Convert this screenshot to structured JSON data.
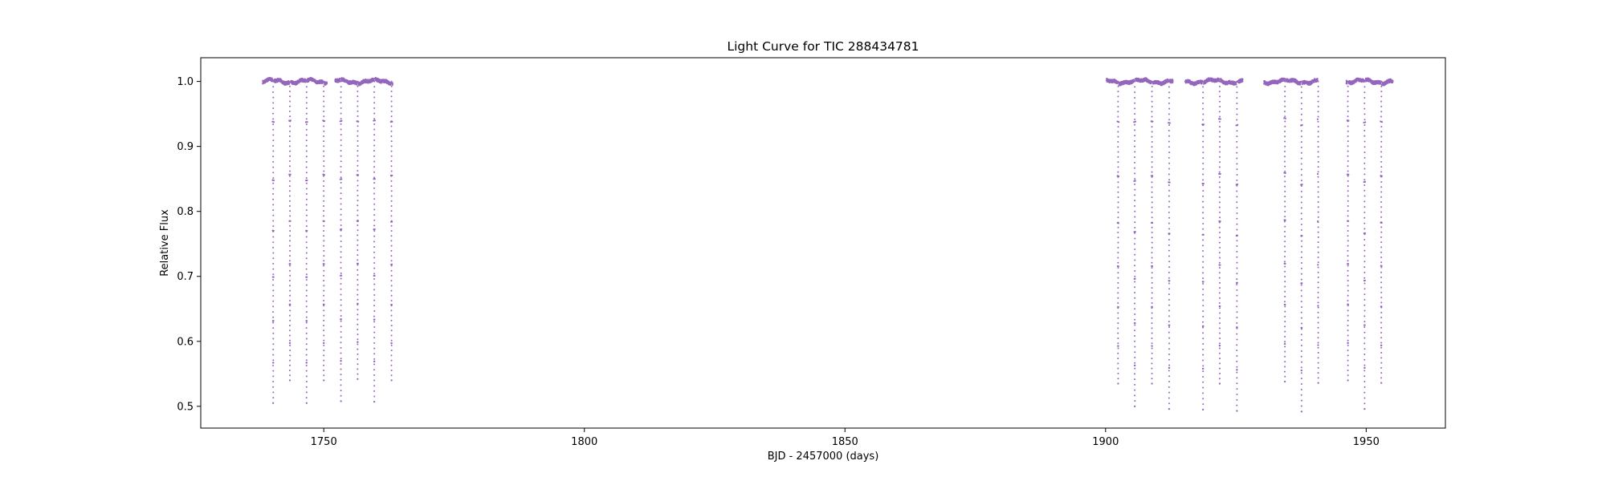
{
  "chart_data": {
    "type": "scatter",
    "title": "Light Curve for TIC 288434781",
    "xlabel": "BJD - 2457000 (days)",
    "ylabel": "Relative Flux",
    "xlim": [
      1726.4,
      1965.2
    ],
    "ylim": [
      0.4665,
      1.0365
    ],
    "x_ticks": [
      1750,
      1800,
      1850,
      1900,
      1950
    ],
    "y_ticks": [
      0.5,
      0.6,
      0.7,
      0.8,
      0.9,
      1.0
    ],
    "x_tick_labels": [
      "1750",
      "1800",
      "1850",
      "1900",
      "1950"
    ],
    "y_tick_labels": [
      "0.5",
      "0.6",
      "0.7",
      "0.8",
      "0.9",
      "1.0"
    ],
    "grid": false,
    "legend": "none",
    "marker_color": "#9467bd",
    "baseline_flux": 1.0,
    "observing_segments": [
      {
        "start": 1738.3,
        "end": 1750.6
      },
      {
        "start": 1752.2,
        "end": 1763.2
      },
      {
        "start": 1900.2,
        "end": 1912.9
      },
      {
        "start": 1915.3,
        "end": 1926.3
      },
      {
        "start": 1930.4,
        "end": 1940.8
      },
      {
        "start": 1946.2,
        "end": 1955.1
      }
    ],
    "eclipses": [
      {
        "x": 1740.3,
        "min_flux": 0.505
      },
      {
        "x": 1743.5,
        "min_flux": 0.54
      },
      {
        "x": 1746.7,
        "min_flux": 0.505
      },
      {
        "x": 1750.0,
        "min_flux": 0.54
      },
      {
        "x": 1753.3,
        "min_flux": 0.508
      },
      {
        "x": 1756.5,
        "min_flux": 0.542
      },
      {
        "x": 1759.7,
        "min_flux": 0.507
      },
      {
        "x": 1763.0,
        "min_flux": 0.54
      },
      {
        "x": 1902.4,
        "min_flux": 0.535
      },
      {
        "x": 1905.6,
        "min_flux": 0.5
      },
      {
        "x": 1908.9,
        "min_flux": 0.535
      },
      {
        "x": 1912.2,
        "min_flux": 0.496
      },
      {
        "x": 1918.7,
        "min_flux": 0.495
      },
      {
        "x": 1921.9,
        "min_flux": 0.535
      },
      {
        "x": 1925.2,
        "min_flux": 0.493
      },
      {
        "x": 1934.4,
        "min_flux": 0.538
      },
      {
        "x": 1937.6,
        "min_flux": 0.492
      },
      {
        "x": 1940.8,
        "min_flux": 0.536
      },
      {
        "x": 1946.5,
        "min_flux": 0.54
      },
      {
        "x": 1949.7,
        "min_flux": 0.496
      },
      {
        "x": 1952.9,
        "min_flux": 0.536
      }
    ]
  }
}
